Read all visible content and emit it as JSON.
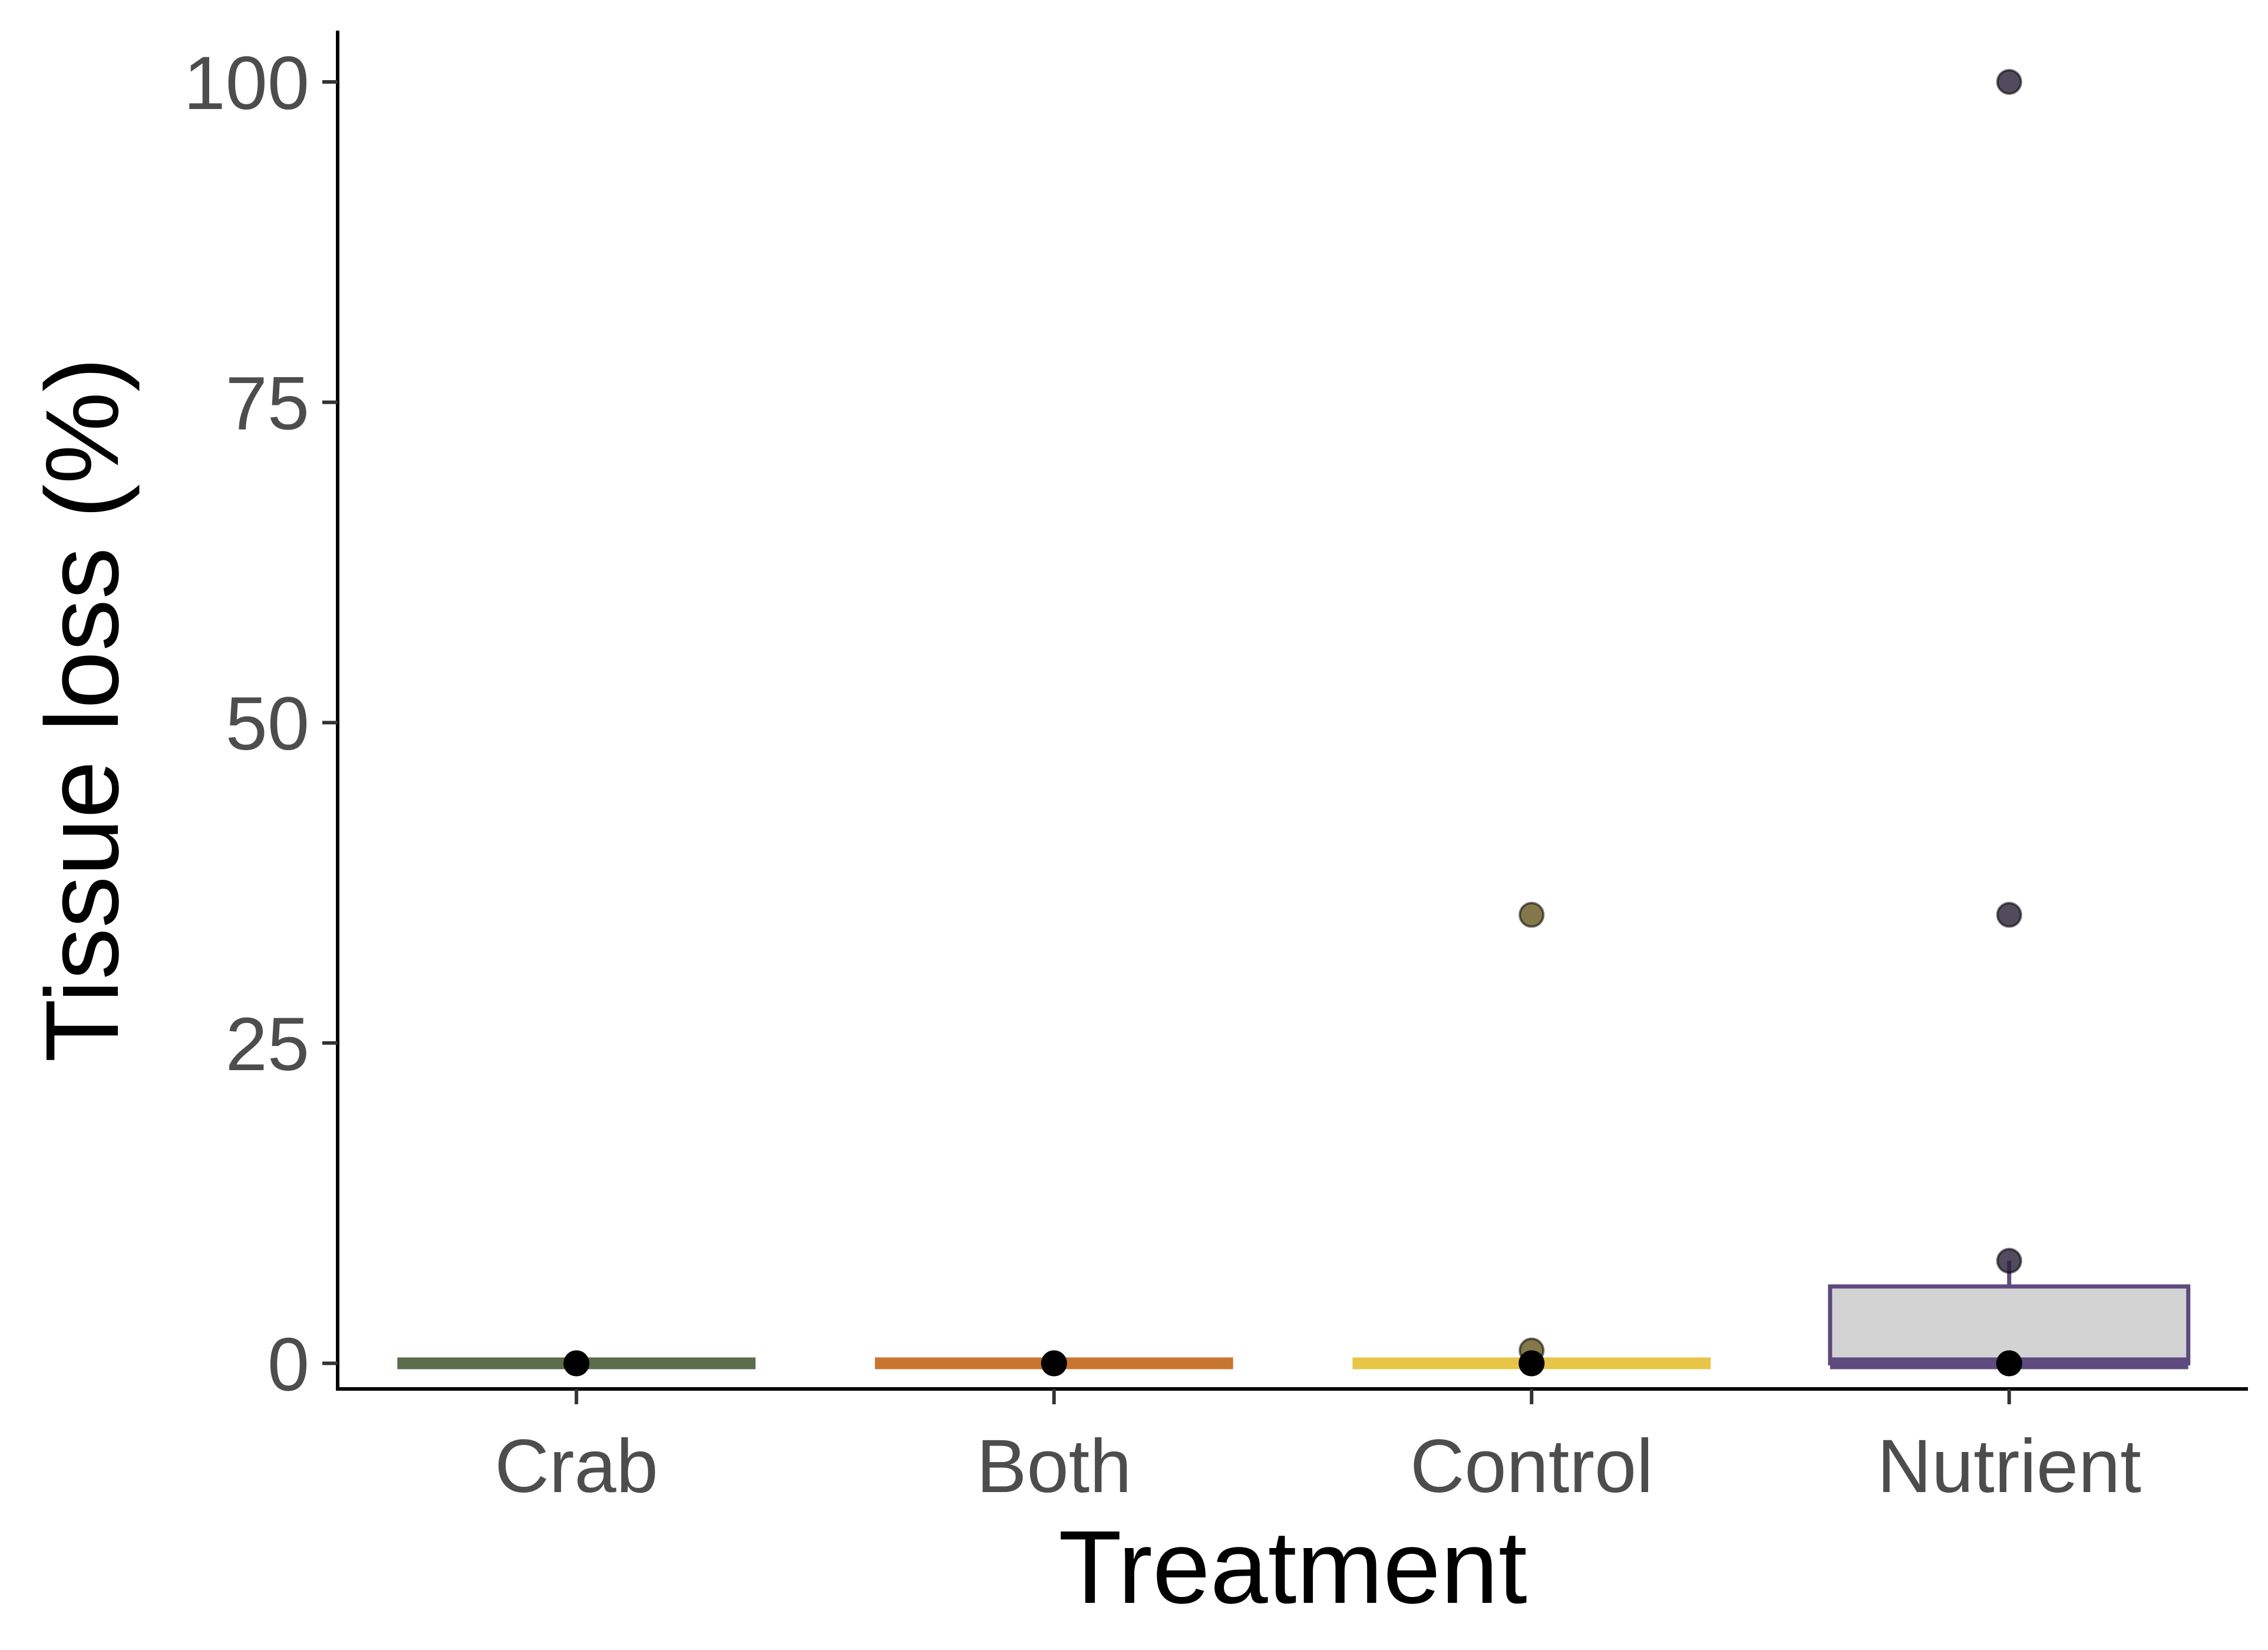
{
  "chart_data": {
    "type": "box",
    "xlabel": "Treatment",
    "ylabel": "Tissue loss (%)",
    "ylim": [
      -2,
      104
    ],
    "yticks": [
      0,
      25,
      50,
      75,
      100
    ],
    "ytick_labels": [
      "0",
      "25",
      "50",
      "75",
      "100"
    ],
    "categories": [
      "Crab",
      "Both",
      "Control",
      "Nutrient"
    ],
    "grid": false,
    "legend": "none",
    "groups": [
      {
        "name": "Crab",
        "color": "#5b6d4a",
        "box": {
          "q1": 0,
          "median": 0,
          "q3": 0,
          "whisker_low": 0,
          "whisker_high": 0
        },
        "mean": 0,
        "points": [
          0
        ]
      },
      {
        "name": "Both",
        "color": "#c87532",
        "box": {
          "q1": 0,
          "median": 0,
          "q3": 0,
          "whisker_low": 0,
          "whisker_high": 0
        },
        "mean": 0,
        "points": [
          0
        ]
      },
      {
        "name": "Control",
        "color": "#e8c547",
        "box": {
          "q1": 0,
          "median": 0,
          "q3": 0,
          "whisker_low": 0,
          "whisker_high": 0
        },
        "mean": 0,
        "points": [
          35,
          1,
          0
        ]
      },
      {
        "name": "Nutrient",
        "color": "#5e4a7e",
        "box": {
          "q1": 0,
          "median": 0,
          "q3": 6,
          "whisker_low": 0,
          "whisker_high": 8
        },
        "mean": 0,
        "points": [
          100,
          35,
          8,
          0
        ]
      }
    ]
  }
}
